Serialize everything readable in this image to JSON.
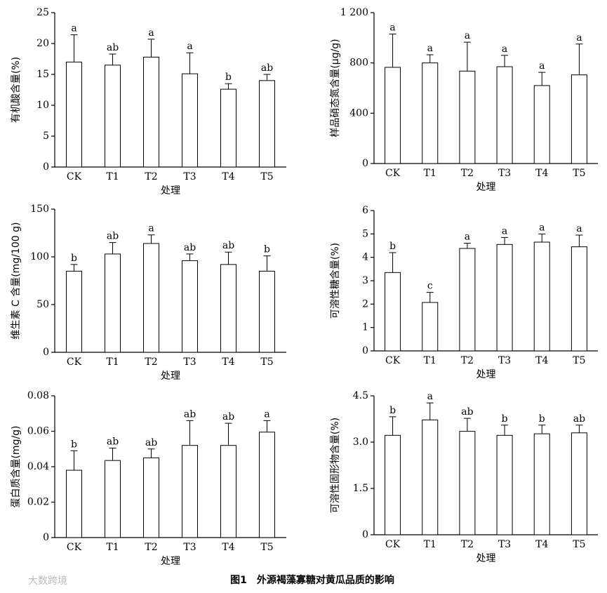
{
  "chart_data": [
    {
      "type": "bar",
      "ylabel": "有机酸含量(%)",
      "xlabel": "处理",
      "categories": [
        "CK",
        "T1",
        "T2",
        "T3",
        "T4",
        "T5"
      ],
      "values": [
        17.0,
        16.5,
        17.8,
        15.1,
        12.6,
        14.0
      ],
      "errors": [
        4.4,
        1.8,
        2.9,
        3.4,
        0.9,
        1.0
      ],
      "letters": [
        "a",
        "ab",
        "a",
        "a",
        "b",
        "ab"
      ],
      "color": "#ffffff",
      "ylim": [
        0,
        25
      ],
      "yticks": [
        0,
        5,
        10,
        15,
        20,
        25
      ]
    },
    {
      "type": "bar",
      "ylabel": "样品硝态氮含量(μg/g)",
      "xlabel": "处理",
      "categories": [
        "CK",
        "T1",
        "T2",
        "T3",
        "T4",
        "T5"
      ],
      "values": [
        765,
        800,
        735,
        770,
        620,
        705
      ],
      "errors": [
        265,
        65,
        230,
        90,
        105,
        245
      ],
      "letters": [
        "a",
        "a",
        "a",
        "a",
        "a",
        "a"
      ],
      "color": "#ffffff",
      "ylim": [
        0,
        1200
      ],
      "yticks": [
        0,
        400,
        800,
        {
          "value": 1200,
          "label": "1 200"
        }
      ]
    },
    {
      "type": "bar",
      "ylabel": "维生素 C 含量(mg/100 g)",
      "xlabel": "处理",
      "categories": [
        "CK",
        "T1",
        "T2",
        "T3",
        "T4",
        "T5"
      ],
      "values": [
        85,
        103,
        114,
        96,
        92,
        85
      ],
      "errors": [
        7,
        12,
        9,
        7,
        13,
        16
      ],
      "letters": [
        "b",
        "ab",
        "a",
        "ab",
        "ab",
        "b"
      ],
      "color": "#ffffff",
      "ylim": [
        0,
        150
      ],
      "yticks": [
        0,
        50,
        100,
        150
      ]
    },
    {
      "type": "bar",
      "ylabel": "可溶性糖含量(%)",
      "xlabel": "处理",
      "categories": [
        "CK",
        "T1",
        "T2",
        "T3",
        "T4",
        "T5"
      ],
      "values": [
        3.35,
        2.07,
        4.38,
        4.55,
        4.65,
        4.45
      ],
      "errors": [
        0.85,
        0.43,
        0.22,
        0.3,
        0.35,
        0.5
      ],
      "letters": [
        "b",
        "c",
        "a",
        "a",
        "a",
        "a"
      ],
      "color": "#ffffff",
      "ylim": [
        0,
        6
      ],
      "yticks": [
        0,
        1,
        2,
        3,
        4,
        5,
        6
      ]
    },
    {
      "type": "bar",
      "ylabel": "蛋白质含量(mg/g)",
      "xlabel": "处理",
      "categories": [
        "CK",
        "T1",
        "T2",
        "T3",
        "T4",
        "T5"
      ],
      "values": [
        0.038,
        0.0435,
        0.045,
        0.052,
        0.052,
        0.0595
      ],
      "errors": [
        0.011,
        0.007,
        0.005,
        0.014,
        0.0125,
        0.0065
      ],
      "letters": [
        "b",
        "ab",
        "ab",
        "ab",
        "ab",
        "a"
      ],
      "color": "#ffffff",
      "ylim": [
        0,
        0.08
      ],
      "yticks": [
        0,
        0.02,
        0.04,
        0.06,
        0.08
      ]
    },
    {
      "type": "bar",
      "ylabel": "可溶性固形物含量(%)",
      "xlabel": "处理",
      "categories": [
        "CK",
        "T1",
        "T2",
        "T3",
        "T4",
        "T5"
      ],
      "values": [
        3.22,
        3.72,
        3.35,
        3.22,
        3.27,
        3.3
      ],
      "errors": [
        0.6,
        0.55,
        0.42,
        0.33,
        0.28,
        0.25
      ],
      "letters": [
        "b",
        "a",
        "ab",
        "b",
        "b",
        "ab"
      ],
      "color": "#ffffff",
      "ylim": [
        0,
        4.5
      ],
      "yticks": [
        0,
        1.5,
        {
          "value": 3,
          "label": "3.0"
        },
        4.5
      ]
    }
  ],
  "caption": "图1　外源褐藻寡糖对黄瓜品质的影响",
  "watermark": "大数跨境"
}
